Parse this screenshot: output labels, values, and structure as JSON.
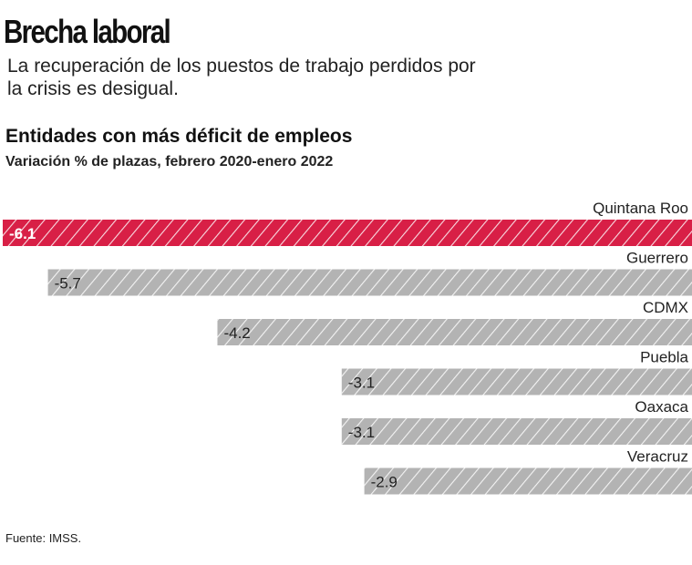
{
  "header": {
    "title": "Brecha laboral",
    "subtitle": "La recuperación de los puestos de trabajo perdidos por la crisis es desigual."
  },
  "chart_data": {
    "type": "bar",
    "orientation": "horizontal",
    "title": "Entidades con más déficit de empleos",
    "subtitle": "Variación % de plazas, febrero 2020-enero 2022",
    "categories": [
      "Quintana Roo",
      "Guerrero",
      "CDMX",
      "Puebla",
      "Oaxaca",
      "Veracruz"
    ],
    "values": [
      -6.1,
      -5.7,
      -4.2,
      -3.1,
      -3.1,
      -2.9
    ],
    "labels": [
      "-6.1",
      "-5.7",
      "-4.2",
      "-3.1",
      "-3.1",
      "-2.9"
    ],
    "highlight_color": "#d81f46",
    "bar_color": "#b3b3b3",
    "xlim": [
      -6.1,
      0
    ]
  },
  "footer": {
    "source": "Fuente: IMSS."
  }
}
